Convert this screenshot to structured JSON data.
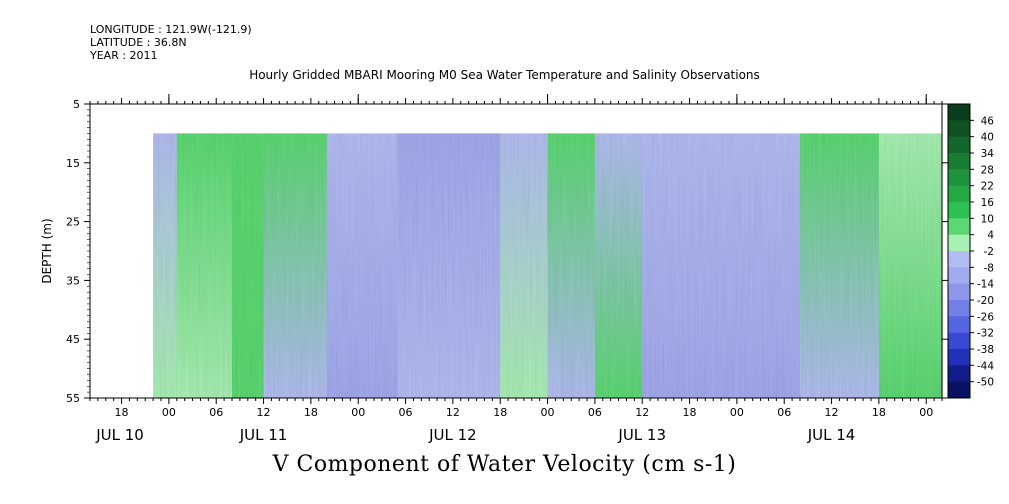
{
  "header": {
    "longitude": "LONGITUDE : 121.9W(-121.9)",
    "latitude": "LATITUDE : 36.8N",
    "year": "YEAR : 2011"
  },
  "title": "Hourly Gridded MBARI Mooring M0 Sea Water Temperature and Salinity Observations",
  "variable_title": "V Component of Water Velocity (cm s-1)",
  "chart_data": {
    "type": "heatmap",
    "title": "Hourly Gridded MBARI Mooring M0 Sea Water Temperature and Salinity Observations",
    "xlabel": "",
    "ylabel": "DEPTH (m)",
    "colorbar_label": "V Component of Water Velocity (cm s-1)",
    "y_range": [
      55,
      5
    ],
    "y_ticks": [
      5,
      15,
      25,
      35,
      45,
      55
    ],
    "x_hour_ticks": [
      "18",
      "00",
      "06",
      "12",
      "18",
      "00",
      "06",
      "12",
      "18",
      "00",
      "06",
      "12",
      "18",
      "00",
      "06",
      "12",
      "18",
      "00",
      "06",
      "12",
      "18",
      "00"
    ],
    "x_date_labels": [
      "JUL 10",
      "JUL 11",
      "JUL 12",
      "JUL 13",
      "JUL 14"
    ],
    "x_range_hours": [
      "2011-07-10 14:00",
      "2011-07-15 02:00"
    ],
    "data_start": "2011-07-10 22:00",
    "data_depth_range": [
      10,
      55
    ],
    "colorbar_levels": [
      "46",
      "40",
      "34",
      "28",
      "22",
      "16",
      "10",
      "4",
      "-2",
      "-8",
      "-14",
      "-20",
      "-26",
      "-32",
      "-38",
      "-44",
      "-50"
    ],
    "colorbar_colors": [
      "#0a3d1c",
      "#0f5224",
      "#14672c",
      "#1a7d34",
      "#1f933d",
      "#25a945",
      "#2fc052",
      "#5cd873",
      "#a9f0b4",
      "#b3bdf2",
      "#a3aaee",
      "#8d96ea",
      "#7280e6",
      "#5566e0",
      "#3a49d2",
      "#2232b8",
      "#121d8a",
      "#0a1263"
    ],
    "structure_columns": [
      {
        "start": "2011-07-10 22:00",
        "end": "2011-07-11 01:00",
        "upper": "-4",
        "lower": "-2"
      },
      {
        "start": "2011-07-11 01:00",
        "end": "2011-07-11 08:00",
        "upper": "4",
        "lower": "2"
      },
      {
        "start": "2011-07-11 08:00",
        "end": "2011-07-11 12:00",
        "upper": "4",
        "lower": "6"
      },
      {
        "start": "2011-07-11 12:00",
        "end": "2011-07-11 20:00",
        "upper": "6",
        "lower": "-6"
      },
      {
        "start": "2011-07-11 20:00",
        "end": "2011-07-12 05:00",
        "upper": "-8",
        "lower": "-14"
      },
      {
        "start": "2011-07-12 05:00",
        "end": "2011-07-12 18:00",
        "upper": "-10",
        "lower": "-8"
      },
      {
        "start": "2011-07-12 18:00",
        "end": "2011-07-13 00:00",
        "upper": "-4",
        "lower": "2"
      },
      {
        "start": "2011-07-13 00:00",
        "end": "2011-07-13 06:00",
        "upper": "4",
        "lower": "-6"
      },
      {
        "start": "2011-07-13 06:00",
        "end": "2011-07-13 12:00",
        "upper": "-6",
        "lower": "4"
      },
      {
        "start": "2011-07-13 12:00",
        "end": "2011-07-14 08:00",
        "upper": "-8",
        "lower": "-12"
      },
      {
        "start": "2011-07-14 08:00",
        "end": "2011-07-14 18:00",
        "upper": "6",
        "lower": "-6"
      },
      {
        "start": "2011-07-14 18:00",
        "end": "2011-07-15 02:00",
        "upper": "2",
        "lower": "4"
      }
    ]
  }
}
